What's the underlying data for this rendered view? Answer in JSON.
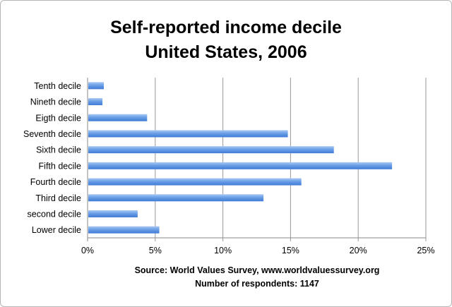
{
  "chart_data": {
    "type": "bar",
    "orientation": "horizontal",
    "title": [
      "Self-reported income decile",
      "United States, 2006"
    ],
    "categories": [
      "Tenth decile",
      "Nineth decile",
      "Eigth decile",
      "Seventh decile",
      "Sixth decile",
      "Fifth decile",
      "Fourth decile",
      "Third decile",
      "second decile",
      "Lower decile"
    ],
    "values": [
      1.2,
      1.1,
      4.4,
      14.8,
      18.2,
      22.5,
      15.8,
      13.0,
      3.7,
      5.3
    ],
    "xlabel": "",
    "ylabel": "",
    "xlim": [
      0,
      25
    ],
    "x_ticks": [
      "0%",
      "5%",
      "10%",
      "15%",
      "20%",
      "25%"
    ],
    "grid": "vertical",
    "legend": "none",
    "bar_color": "#5b93e0",
    "notes": [
      "Source: World Values Survey, www.worldvaluessurvey.org",
      "Number of respondents: 1147"
    ]
  }
}
